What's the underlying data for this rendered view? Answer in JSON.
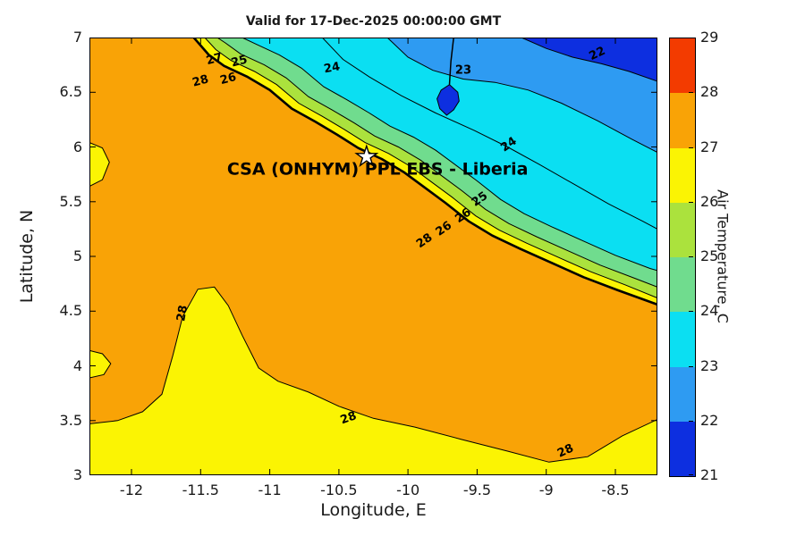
{
  "chart_data": {
    "type": "filled-contour-map",
    "title": "Valid for 17-Dec-2025 00:00:00 GMT",
    "xlabel": "Longitude, E",
    "ylabel": "Latitude, N",
    "colorbar_label": "Air Temperature, C",
    "xlim": [
      -12.304,
      -8.196
    ],
    "ylim": [
      3,
      7
    ],
    "x_ticks": [
      -12,
      -11.5,
      -11,
      -10.5,
      -10,
      -9.5,
      -9,
      -8.5
    ],
    "y_ticks": [
      3,
      3.5,
      4,
      4.5,
      5,
      5.5,
      6,
      6.5,
      7
    ],
    "land_color": "#F9A306",
    "colorbar": {
      "levels": [
        21,
        22,
        23,
        24,
        25,
        26,
        27,
        28,
        29
      ],
      "colors": [
        "#0D2FE0",
        "#2E9BF2",
        "#0BDFF2",
        "#70DC8E",
        "#ABE23D",
        "#FBF403",
        "#F9A306",
        "#F33B00"
      ]
    },
    "annotation": {
      "text": "CSA (ONHYM) PPL EBS  - Liberia",
      "lon": -10.22,
      "lat": 5.79
    },
    "star": {
      "lon": -10.3,
      "lat": 5.91
    },
    "coastline": [
      [
        -11.55,
        7.0
      ],
      [
        -11.44,
        6.84
      ],
      [
        -11.33,
        6.74
      ],
      [
        -11.16,
        6.64
      ],
      [
        -11.0,
        6.52
      ],
      [
        -10.84,
        6.35
      ],
      [
        -10.67,
        6.23
      ],
      [
        -10.51,
        6.11
      ],
      [
        -10.36,
        5.99
      ],
      [
        -10.19,
        5.89
      ],
      [
        -10.03,
        5.77
      ],
      [
        -9.88,
        5.63
      ],
      [
        -9.73,
        5.49
      ],
      [
        -9.56,
        5.32
      ],
      [
        -9.39,
        5.19
      ],
      [
        -9.19,
        5.07
      ],
      [
        -8.96,
        4.94
      ],
      [
        -8.73,
        4.81
      ],
      [
        -8.48,
        4.69
      ],
      [
        -8.196,
        4.56
      ]
    ],
    "regions": [
      {
        "name": "sea-27-yellow",
        "color": "#FBF403",
        "close": "top-right",
        "points": [
          [
            -11.55,
            7.0
          ],
          [
            -11.44,
            6.84
          ],
          [
            -11.33,
            6.74
          ],
          [
            -11.16,
            6.64
          ],
          [
            -11.0,
            6.52
          ],
          [
            -10.84,
            6.35
          ],
          [
            -10.67,
            6.23
          ],
          [
            -10.51,
            6.11
          ],
          [
            -10.36,
            5.99
          ],
          [
            -10.19,
            5.89
          ],
          [
            -10.03,
            5.77
          ],
          [
            -9.88,
            5.63
          ],
          [
            -9.73,
            5.49
          ],
          [
            -9.56,
            5.32
          ],
          [
            -9.39,
            5.19
          ],
          [
            -9.19,
            5.07
          ],
          [
            -8.96,
            4.94
          ],
          [
            -8.73,
            4.81
          ],
          [
            -8.48,
            4.69
          ],
          [
            -8.196,
            4.56
          ]
        ]
      },
      {
        "name": "sea-26-yellowgreen",
        "color": "#ABE23D",
        "close": "top-right",
        "points": [
          [
            -11.47,
            7.0
          ],
          [
            -11.39,
            6.89
          ],
          [
            -11.28,
            6.79
          ],
          [
            -11.11,
            6.69
          ],
          [
            -10.95,
            6.57
          ],
          [
            -10.79,
            6.4
          ],
          [
            -10.62,
            6.28
          ],
          [
            -10.46,
            6.16
          ],
          [
            -10.31,
            6.04
          ],
          [
            -10.14,
            5.94
          ],
          [
            -9.98,
            5.82
          ],
          [
            -9.83,
            5.68
          ],
          [
            -9.68,
            5.54
          ],
          [
            -9.51,
            5.37
          ],
          [
            -9.34,
            5.24
          ],
          [
            -9.14,
            5.12
          ],
          [
            -8.91,
            4.99
          ],
          [
            -8.68,
            4.86
          ],
          [
            -8.43,
            4.74
          ],
          [
            -8.196,
            4.62
          ]
        ]
      },
      {
        "name": "sea-25-green",
        "color": "#70DC8E",
        "close": "top-right",
        "points": [
          [
            -11.38,
            7.0
          ],
          [
            -11.32,
            6.95
          ],
          [
            -11.21,
            6.85
          ],
          [
            -11.04,
            6.75
          ],
          [
            -10.88,
            6.63
          ],
          [
            -10.72,
            6.46
          ],
          [
            -10.55,
            6.34
          ],
          [
            -10.39,
            6.22
          ],
          [
            -10.24,
            6.1
          ],
          [
            -10.07,
            6.0
          ],
          [
            -9.91,
            5.88
          ],
          [
            -9.76,
            5.74
          ],
          [
            -9.61,
            5.6
          ],
          [
            -9.44,
            5.43
          ],
          [
            -9.27,
            5.3
          ],
          [
            -9.07,
            5.18
          ],
          [
            -8.84,
            5.05
          ],
          [
            -8.61,
            4.92
          ],
          [
            -8.36,
            4.8
          ],
          [
            -8.196,
            4.72
          ]
        ]
      },
      {
        "name": "sea-24-cyan",
        "color": "#0BDFF2",
        "close": "top-right",
        "points": [
          [
            -11.2,
            7.0
          ],
          [
            -11.1,
            6.94
          ],
          [
            -10.93,
            6.84
          ],
          [
            -10.77,
            6.72
          ],
          [
            -10.61,
            6.55
          ],
          [
            -10.44,
            6.43
          ],
          [
            -10.28,
            6.31
          ],
          [
            -10.13,
            6.19
          ],
          [
            -9.96,
            6.09
          ],
          [
            -9.8,
            5.97
          ],
          [
            -9.65,
            5.83
          ],
          [
            -9.5,
            5.69
          ],
          [
            -9.33,
            5.52
          ],
          [
            -9.16,
            5.39
          ],
          [
            -8.96,
            5.27
          ],
          [
            -8.73,
            5.14
          ],
          [
            -8.5,
            5.01
          ],
          [
            -8.25,
            4.89
          ],
          [
            -8.196,
            4.87
          ]
        ]
      },
      {
        "name": "sea-23-lightblue",
        "color": "#2E9BF2",
        "close": "top-right",
        "points": [
          [
            -10.15,
            7.0
          ],
          [
            -10.0,
            6.82
          ],
          [
            -9.82,
            6.7
          ],
          [
            -9.6,
            6.62
          ],
          [
            -9.37,
            6.59
          ],
          [
            -9.13,
            6.52
          ],
          [
            -8.89,
            6.4
          ],
          [
            -8.63,
            6.24
          ],
          [
            -8.38,
            6.07
          ],
          [
            -8.196,
            5.95
          ]
        ]
      },
      {
        "name": "sea-22-blue",
        "color": "#0D2FE0",
        "close": "top-right",
        "points": [
          [
            -9.18,
            7.0
          ],
          [
            -9.0,
            6.9
          ],
          [
            -8.81,
            6.82
          ],
          [
            -8.6,
            6.76
          ],
          [
            -8.4,
            6.69
          ],
          [
            -8.196,
            6.6
          ]
        ]
      },
      {
        "name": "cold-pocket-blob",
        "color": "#0D2FE0",
        "close": "z",
        "points": [
          [
            -9.7,
            6.57
          ],
          [
            -9.64,
            6.5
          ],
          [
            -9.63,
            6.42
          ],
          [
            -9.67,
            6.34
          ],
          [
            -9.72,
            6.29
          ],
          [
            -9.77,
            6.35
          ],
          [
            -9.79,
            6.44
          ],
          [
            -9.76,
            6.52
          ]
        ]
      },
      {
        "name": "land-yellow-bottom",
        "color": "#FBF403",
        "close": "bottom",
        "points": [
          [
            -12.304,
            3.47
          ],
          [
            -12.1,
            3.5
          ],
          [
            -11.92,
            3.58
          ],
          [
            -11.78,
            3.74
          ],
          [
            -11.7,
            4.1
          ],
          [
            -11.63,
            4.45
          ],
          [
            -11.52,
            4.7
          ],
          [
            -11.4,
            4.72
          ],
          [
            -11.3,
            4.55
          ],
          [
            -11.2,
            4.28
          ],
          [
            -11.08,
            3.98
          ],
          [
            -10.94,
            3.86
          ],
          [
            -10.72,
            3.76
          ],
          [
            -10.5,
            3.63
          ],
          [
            -10.25,
            3.52
          ],
          [
            -9.95,
            3.44
          ],
          [
            -9.62,
            3.33
          ],
          [
            -9.28,
            3.22
          ],
          [
            -8.98,
            3.12
          ],
          [
            -8.7,
            3.17
          ],
          [
            -8.45,
            3.36
          ],
          [
            -8.196,
            3.51
          ]
        ]
      },
      {
        "name": "land-yellow-left-blob",
        "color": "#FBF403",
        "close": "z",
        "points": [
          [
            -12.304,
            4.14
          ],
          [
            -12.21,
            4.11
          ],
          [
            -12.15,
            4.02
          ],
          [
            -12.2,
            3.92
          ],
          [
            -12.304,
            3.89
          ]
        ]
      },
      {
        "name": "land-yellow-left-notch",
        "color": "#FBF403",
        "close": "z",
        "points": [
          [
            -12.304,
            6.04
          ],
          [
            -12.21,
            5.99
          ],
          [
            -12.16,
            5.86
          ],
          [
            -12.21,
            5.7
          ],
          [
            -12.304,
            5.64
          ]
        ]
      }
    ],
    "lines": [
      {
        "name": "contour-24",
        "width": 1,
        "points": [
          [
            -10.62,
            7.0
          ],
          [
            -10.47,
            6.8
          ],
          [
            -10.28,
            6.64
          ],
          [
            -10.05,
            6.47
          ],
          [
            -9.8,
            6.31
          ],
          [
            -9.52,
            6.15
          ],
          [
            -9.28,
            6.0
          ],
          [
            -9.05,
            5.84
          ],
          [
            -8.8,
            5.66
          ],
          [
            -8.55,
            5.48
          ],
          [
            -8.3,
            5.32
          ],
          [
            -8.196,
            5.25
          ]
        ]
      },
      {
        "name": "pocket-drip",
        "width": 1.5,
        "points": [
          [
            -9.67,
            7.0
          ],
          [
            -9.69,
            6.78
          ],
          [
            -9.7,
            6.57
          ]
        ]
      }
    ],
    "contour_labels": [
      {
        "v": "27",
        "lon": -11.4,
        "lat": 6.8,
        "rot": -15
      },
      {
        "v": "25",
        "lon": -11.22,
        "lat": 6.78,
        "rot": -15
      },
      {
        "v": "28",
        "lon": -11.5,
        "lat": 6.6,
        "rot": -15
      },
      {
        "v": "26",
        "lon": -11.3,
        "lat": 6.62,
        "rot": -15
      },
      {
        "v": "24",
        "lon": -10.55,
        "lat": 6.72,
        "rot": -10
      },
      {
        "v": "23",
        "lon": -9.6,
        "lat": 6.7,
        "rot": 0
      },
      {
        "v": "22",
        "lon": -8.63,
        "lat": 6.85,
        "rot": -25
      },
      {
        "v": "24",
        "lon": -9.27,
        "lat": 6.02,
        "rot": -35
      },
      {
        "v": "25",
        "lon": -9.48,
        "lat": 5.52,
        "rot": -35
      },
      {
        "v": "26",
        "lon": -9.6,
        "lat": 5.37,
        "rot": -35
      },
      {
        "v": "26",
        "lon": -9.74,
        "lat": 5.25,
        "rot": -35
      },
      {
        "v": "28",
        "lon": -9.88,
        "lat": 5.14,
        "rot": -35
      },
      {
        "v": "28",
        "lon": -11.63,
        "lat": 4.48,
        "rot": -80
      },
      {
        "v": "28",
        "lon": -10.43,
        "lat": 3.52,
        "rot": -20
      },
      {
        "v": "28",
        "lon": -8.86,
        "lat": 3.22,
        "rot": -25
      }
    ]
  }
}
